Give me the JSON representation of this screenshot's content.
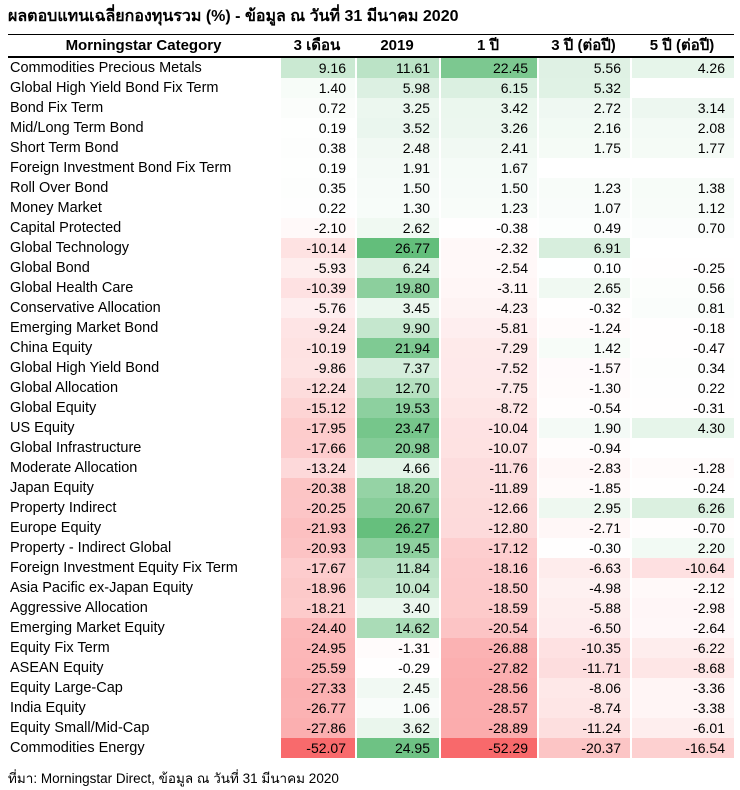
{
  "title": "ผลตอบแทนเฉลี่ยกองทุนรวม (%) - ข้อมูล ณ วันที่ 31 มีนาคม 2020",
  "source_note": "ที่มา: Morningstar Direct, ข้อมูล ณ วันที่ 31 มีนาคม 2020",
  "chart_data": {
    "type": "heatmap",
    "title": "ผลตอบแทนเฉลี่ยกองทุนรวม (%) - ข้อมูล ณ วันที่ 31 มีนาคม 2020",
    "columns": [
      "Morningstar Category",
      "3 เดือน",
      "2019",
      "1 ปี",
      "3 ปี (ต่อปี)",
      "5 ปี (ต่อปี)"
    ],
    "rows": [
      {
        "category": "Commodities Precious Metals",
        "values": [
          9.16,
          11.61,
          22.45,
          5.56,
          4.26
        ]
      },
      {
        "category": "Global High Yield Bond Fix Term",
        "values": [
          1.4,
          5.98,
          6.15,
          5.32,
          null
        ]
      },
      {
        "category": "Bond Fix Term",
        "values": [
          0.72,
          3.25,
          3.42,
          2.72,
          3.14
        ]
      },
      {
        "category": "Mid/Long Term Bond",
        "values": [
          0.19,
          3.52,
          3.26,
          2.16,
          2.08
        ]
      },
      {
        "category": "Short Term Bond",
        "values": [
          0.38,
          2.48,
          2.41,
          1.75,
          1.77
        ]
      },
      {
        "category": "Foreign Investment Bond Fix Term",
        "values": [
          0.19,
          1.91,
          1.67,
          null,
          null
        ]
      },
      {
        "category": "Roll Over Bond",
        "values": [
          0.35,
          1.5,
          1.5,
          1.23,
          1.38
        ]
      },
      {
        "category": "Money Market",
        "values": [
          0.22,
          1.3,
          1.23,
          1.07,
          1.12
        ]
      },
      {
        "category": "Capital Protected",
        "values": [
          -2.1,
          2.62,
          -0.38,
          0.49,
          0.7
        ]
      },
      {
        "category": "Global Technology",
        "values": [
          -10.14,
          26.77,
          -2.32,
          6.91,
          null
        ]
      },
      {
        "category": "Global Bond",
        "values": [
          -5.93,
          6.24,
          -2.54,
          0.1,
          -0.25
        ]
      },
      {
        "category": "Global Health Care",
        "values": [
          -10.39,
          19.8,
          -3.11,
          2.65,
          0.56
        ]
      },
      {
        "category": "Conservative Allocation",
        "values": [
          -5.76,
          3.45,
          -4.23,
          -0.32,
          0.81
        ]
      },
      {
        "category": "Emerging Market Bond",
        "values": [
          -9.24,
          9.9,
          -5.81,
          -1.24,
          -0.18
        ]
      },
      {
        "category": "China Equity",
        "values": [
          -10.19,
          21.94,
          -7.29,
          1.42,
          -0.47
        ]
      },
      {
        "category": "Global High Yield Bond",
        "values": [
          -9.86,
          7.37,
          -7.52,
          -1.57,
          0.34
        ]
      },
      {
        "category": "Global Allocation",
        "values": [
          -12.24,
          12.7,
          -7.75,
          -1.3,
          0.22
        ]
      },
      {
        "category": "Global Equity",
        "values": [
          -15.12,
          19.53,
          -8.72,
          -0.54,
          -0.31
        ]
      },
      {
        "category": "US Equity",
        "values": [
          -17.95,
          23.47,
          -10.04,
          1.9,
          4.3
        ]
      },
      {
        "category": "Global Infrastructure",
        "values": [
          -17.66,
          20.98,
          -10.07,
          -0.94,
          null
        ]
      },
      {
        "category": "Moderate Allocation",
        "values": [
          -13.24,
          4.66,
          -11.76,
          -2.83,
          -1.28
        ]
      },
      {
        "category": "Japan Equity",
        "values": [
          -20.38,
          18.2,
          -11.89,
          -1.85,
          -0.24
        ]
      },
      {
        "category": "Property Indirect",
        "values": [
          -20.25,
          20.67,
          -12.66,
          2.95,
          6.26
        ]
      },
      {
        "category": "Europe Equity",
        "values": [
          -21.93,
          26.27,
          -12.8,
          -2.71,
          -0.7
        ]
      },
      {
        "category": "Property - Indirect Global",
        "values": [
          -20.93,
          19.45,
          -17.12,
          -0.3,
          2.2
        ]
      },
      {
        "category": "Foreign Investment Equity Fix Term",
        "values": [
          -17.67,
          11.84,
          -18.16,
          -6.63,
          -10.64
        ]
      },
      {
        "category": "Asia Pacific ex-Japan Equity",
        "values": [
          -18.96,
          10.04,
          -18.5,
          -4.98,
          -2.12
        ]
      },
      {
        "category": "Aggressive Allocation",
        "values": [
          -18.21,
          3.4,
          -18.59,
          -5.88,
          -2.98
        ]
      },
      {
        "category": "Emerging Market Equity",
        "values": [
          -24.4,
          14.62,
          -20.54,
          -6.5,
          -2.64
        ]
      },
      {
        "category": "Equity Fix Term",
        "values": [
          -24.95,
          -1.31,
          -26.88,
          -10.35,
          -6.22
        ]
      },
      {
        "category": "ASEAN Equity",
        "values": [
          -25.59,
          -0.29,
          -27.82,
          -11.71,
          -8.68
        ]
      },
      {
        "category": "Equity Large-Cap",
        "values": [
          -27.33,
          2.45,
          -28.56,
          -8.06,
          -3.36
        ]
      },
      {
        "category": "India Equity",
        "values": [
          -26.77,
          1.06,
          -28.57,
          -8.74,
          -3.38
        ]
      },
      {
        "category": "Equity Small/Mid-Cap",
        "values": [
          -27.86,
          3.62,
          -28.89,
          -11.24,
          -6.01
        ]
      },
      {
        "category": "Commodities Energy",
        "values": [
          -52.07,
          24.95,
          -52.29,
          -20.37,
          -16.54
        ]
      }
    ],
    "colorscale": {
      "min_value": -52.29,
      "mid_value": 0,
      "max_value": 26.77,
      "min_color": "#f8696b",
      "mid_color": "#ffffff",
      "max_color": "#63be7b"
    },
    "value_decimals": 2,
    "layout": {
      "grid": false,
      "legend": "none"
    }
  }
}
